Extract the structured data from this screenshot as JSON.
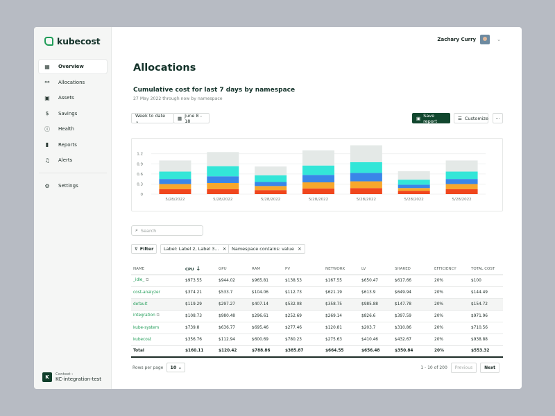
{
  "app": {
    "name": "kubecost"
  },
  "user": {
    "name": "Zachary Curry"
  },
  "sidebar": {
    "items": [
      {
        "label": "Overview",
        "icon": "grid-icon",
        "glyph": "▦",
        "active": true
      },
      {
        "label": "Allocations",
        "icon": "network-icon",
        "glyph": "⚯",
        "active": false
      },
      {
        "label": "Assets",
        "icon": "assets-icon",
        "glyph": "▣",
        "active": false
      },
      {
        "label": "Savings",
        "icon": "dollar-icon",
        "glyph": "$",
        "active": false
      },
      {
        "label": "Health",
        "icon": "alert-circle-icon",
        "glyph": "ⓘ",
        "active": false
      },
      {
        "label": "Reports",
        "icon": "bar-chart-icon",
        "glyph": "▮",
        "active": false
      },
      {
        "label": "Alerts",
        "icon": "bell-icon",
        "glyph": "♫",
        "active": false
      }
    ],
    "settings": {
      "label": "Settings",
      "icon": "gear-icon",
      "glyph": "⚙"
    },
    "context": {
      "badge": "K",
      "label": "Context ›",
      "value": "KC-integration-test"
    }
  },
  "page": {
    "title": "Allocations",
    "report_title": "Cumulative cost for last 7 days by namespace",
    "report_subtitle": "27 May 2022 through now by namespace"
  },
  "toolbar": {
    "range_select": "Week to date ⌄",
    "date_range": "June 8 - 18",
    "save_report": "Save report",
    "customize": "Customize",
    "more": "···"
  },
  "colors": {
    "accent": "#11472e",
    "brand_green": "#1f9c57"
  },
  "chart_data": {
    "type": "bar",
    "stacked": true,
    "categories": [
      "5/28/2022",
      "5/28/2022",
      "5/28/2022",
      "5/28/2022",
      "5/28/2022",
      "5/28/2022",
      "5/28/2022"
    ],
    "yticks": [
      "1.2",
      "0.9",
      "0.6",
      "0.3",
      "0"
    ],
    "ylim": [
      0,
      1.4
    ],
    "series": [
      {
        "color": "#f0461d",
        "values": [
          0.15,
          0.15,
          0.12,
          0.17,
          0.18,
          0.1,
          0.15
        ]
      },
      {
        "color": "#f7a72c",
        "values": [
          0.15,
          0.18,
          0.12,
          0.18,
          0.2,
          0.08,
          0.15
        ]
      },
      {
        "color": "#3a86e8",
        "values": [
          0.15,
          0.2,
          0.12,
          0.22,
          0.25,
          0.1,
          0.15
        ]
      },
      {
        "color": "#33e6d8",
        "values": [
          0.22,
          0.3,
          0.2,
          0.28,
          0.32,
          0.15,
          0.22
        ]
      },
      {
        "color": "#e4e9e7",
        "values": [
          0.33,
          0.42,
          0.26,
          0.45,
          0.5,
          0.25,
          0.33
        ]
      }
    ]
  },
  "search": {
    "placeholder": "Search"
  },
  "filters": {
    "filter_label": "Filter",
    "chips": [
      "Label: Label 2, Label 3...",
      "Namespace contains: value"
    ]
  },
  "table": {
    "columns": [
      "NAME",
      "CPU",
      "GPU",
      "RAM",
      "PV",
      "NETWORK",
      "LV",
      "SHARED",
      "EFFICIENCY",
      "TOTAL COST"
    ],
    "rows": [
      [
        "_idle_",
        "$973.55",
        "$944.02",
        "$965.81",
        "$138.53",
        "$167.55",
        "$650.47",
        "$617.66",
        "20%",
        "$100"
      ],
      [
        "cost-analyzer",
        "$374.21",
        "$533.7",
        "$104.06",
        "$112.73",
        "$621.19",
        "$613.9",
        "$649.94",
        "20%",
        "$144.49"
      ],
      [
        "default",
        "$119.29",
        "$297.27",
        "$407.14",
        "$532.08",
        "$358.75",
        "$985.88",
        "$147.78",
        "20%",
        "$154.72"
      ],
      [
        "integration",
        "$108.73",
        "$980.48",
        "$296.61",
        "$252.69",
        "$269.14",
        "$826.6",
        "$397.59",
        "20%",
        "$971.96"
      ],
      [
        "kube-system",
        "$739.8",
        "$636.77",
        "$695.46",
        "$277.46",
        "$120.81",
        "$203.7",
        "$310.86",
        "20%",
        "$710.56"
      ],
      [
        "kubecost",
        "$356.76",
        "$112.94",
        "$600.69",
        "$780.23",
        "$275.63",
        "$410.46",
        "$432.67",
        "20%",
        "$938.88"
      ]
    ],
    "total": [
      "Total",
      "$160.11",
      "$120.42",
      "$788.86",
      "$385.87",
      "$664.55",
      "$656.48",
      "$350.84",
      "20%",
      "$553.32"
    ]
  },
  "pagination": {
    "rows_per_page_label": "Rows per page",
    "rows_per_page": "10 ⌄",
    "range": "1 - 10 of 200",
    "previous": "Previous",
    "next": "Next"
  }
}
